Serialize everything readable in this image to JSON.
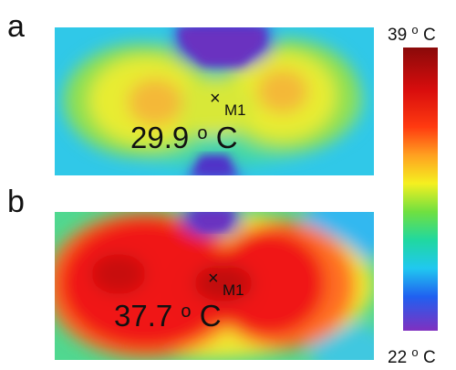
{
  "panels": [
    {
      "label": "a",
      "marker": "M1",
      "reading": {
        "number": "29.9",
        "sup": "o",
        "unit": "C"
      }
    },
    {
      "label": "b",
      "marker": "M1",
      "reading": {
        "number": "37.7",
        "sup": "o",
        "unit": "C"
      }
    }
  ],
  "colorbar": {
    "max": {
      "number": "39",
      "sup": "o",
      "unit": "C"
    },
    "min": {
      "number": "22",
      "sup": "o",
      "unit": "C"
    }
  }
}
